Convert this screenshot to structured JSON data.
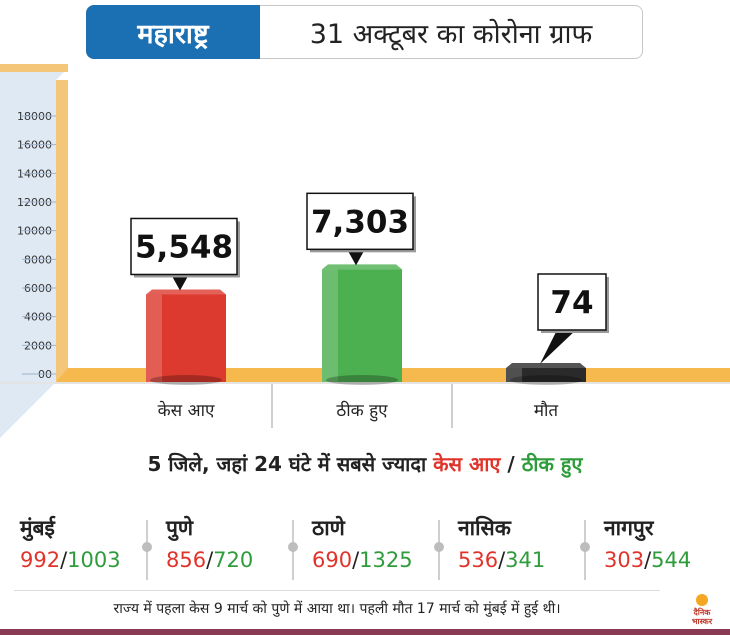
{
  "header": {
    "region": "महाराष्ट्र",
    "title": "31 अक्टूबर का कोरोना ग्राफ"
  },
  "chart_data": {
    "type": "bar",
    "categories": [
      "केस आए",
      "ठीक हुए",
      "मौत"
    ],
    "values": [
      5548,
      7303,
      74
    ],
    "data_labels": [
      "5,548",
      "7,303",
      "74"
    ],
    "colors": [
      "#dc3a2e",
      "#4caf50",
      "#2a2a2a"
    ],
    "yticks": [
      "18000",
      "16000",
      "14000",
      "12000",
      "10000",
      "8000",
      "6000",
      "4000",
      "2000",
      "00"
    ],
    "ylim": [
      0,
      18000
    ],
    "grid": false
  },
  "summary": {
    "prefix": "5 जिले, जहां 24 घंटे में सबसे ज्यादा ",
    "cases_label": "केस आए",
    "sep": " / ",
    "recovered_label": "ठीक हुए"
  },
  "cities": [
    {
      "name": "मुंबई",
      "cases": "992",
      "recovered": "1003"
    },
    {
      "name": "पुणे",
      "cases": "856",
      "recovered": "720"
    },
    {
      "name": "ठाणे",
      "cases": "690",
      "recovered": "1325"
    },
    {
      "name": "नासिक",
      "cases": "536",
      "recovered": "341"
    },
    {
      "name": "नागपुर",
      "cases": "303",
      "recovered": "544"
    }
  ],
  "footer": {
    "note": "राज्य में पहला केस 9 मार्च को पुणे में आया था। पहली मौत 17 मार्च को मुंबई में हुई थी।",
    "logo_line1": "दैनिक",
    "logo_line2": "भास्कर"
  }
}
